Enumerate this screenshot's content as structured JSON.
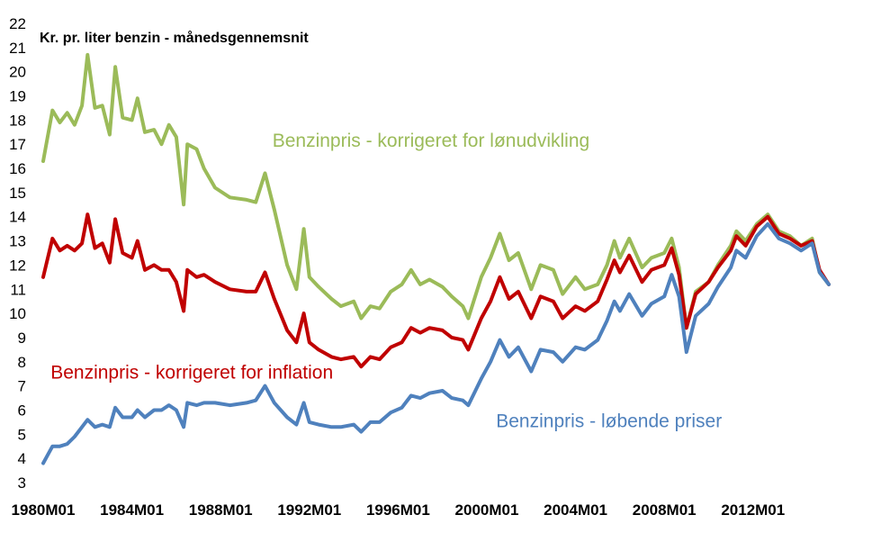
{
  "chart_data": {
    "type": "line",
    "title": "Kr. pr. liter benzin - månedsgennemsnit",
    "xlabel": "",
    "ylabel": "",
    "ylim": [
      3,
      22
    ],
    "yticks": [
      3,
      4,
      5,
      6,
      7,
      8,
      9,
      10,
      11,
      12,
      13,
      14,
      15,
      16,
      17,
      18,
      19,
      20,
      21,
      22
    ],
    "xlim": [
      "1980M01",
      "2015M06"
    ],
    "xticks": [
      "1980M01",
      "1984M01",
      "1988M01",
      "1992M01",
      "1996M01",
      "2000M01",
      "2004M01",
      "2008M01",
      "2012M01"
    ],
    "grid": false,
    "legend": "inline",
    "series": [
      {
        "name": "Benzinpris - korrigeret for lønudvikling",
        "color": "#9bbb59",
        "points": [
          [
            "1980M01",
            16.3
          ],
          [
            "1980M06",
            18.4
          ],
          [
            "1980M10",
            17.9
          ],
          [
            "1981M02",
            18.3
          ],
          [
            "1981M06",
            17.8
          ],
          [
            "1981M10",
            18.6
          ],
          [
            "1982M01",
            20.7
          ],
          [
            "1982M05",
            18.5
          ],
          [
            "1982M09",
            18.6
          ],
          [
            "1983M01",
            17.4
          ],
          [
            "1983M04",
            20.2
          ],
          [
            "1983M08",
            18.1
          ],
          [
            "1984M01",
            18.0
          ],
          [
            "1984M04",
            18.9
          ],
          [
            "1984M08",
            17.5
          ],
          [
            "1985M01",
            17.6
          ],
          [
            "1985M05",
            17.0
          ],
          [
            "1985M09",
            17.8
          ],
          [
            "1986M01",
            17.3
          ],
          [
            "1986M05",
            14.5
          ],
          [
            "1986M07",
            17.0
          ],
          [
            "1986M12",
            16.8
          ],
          [
            "1987M04",
            16.0
          ],
          [
            "1987M10",
            15.2
          ],
          [
            "1988M06",
            14.8
          ],
          [
            "1989M03",
            14.7
          ],
          [
            "1989M08",
            14.6
          ],
          [
            "1990M01",
            15.8
          ],
          [
            "1990M06",
            14.3
          ],
          [
            "1991M01",
            12.0
          ],
          [
            "1991M06",
            11.0
          ],
          [
            "1991M10",
            13.5
          ],
          [
            "1992M01",
            11.5
          ],
          [
            "1992M06",
            11.1
          ],
          [
            "1993M01",
            10.6
          ],
          [
            "1993M06",
            10.3
          ],
          [
            "1994M01",
            10.5
          ],
          [
            "1994M05",
            9.8
          ],
          [
            "1994M10",
            10.3
          ],
          [
            "1995M03",
            10.2
          ],
          [
            "1995M09",
            10.9
          ],
          [
            "1996M03",
            11.2
          ],
          [
            "1996M08",
            11.8
          ],
          [
            "1997M01",
            11.2
          ],
          [
            "1997M06",
            11.4
          ],
          [
            "1998M01",
            11.1
          ],
          [
            "1998M06",
            10.7
          ],
          [
            "1998M12",
            10.3
          ],
          [
            "1999M03",
            9.8
          ],
          [
            "1999M10",
            11.5
          ],
          [
            "2000M03",
            12.3
          ],
          [
            "2000M08",
            13.3
          ],
          [
            "2001M01",
            12.2
          ],
          [
            "2001M06",
            12.5
          ],
          [
            "2002M01",
            11.0
          ],
          [
            "2002M06",
            12.0
          ],
          [
            "2003M01",
            11.8
          ],
          [
            "2003M06",
            10.8
          ],
          [
            "2004M01",
            11.5
          ],
          [
            "2004M06",
            11.0
          ],
          [
            "2005M01",
            11.2
          ],
          [
            "2005M06",
            12.0
          ],
          [
            "2005M10",
            13.0
          ],
          [
            "2006M01",
            12.3
          ],
          [
            "2006M06",
            13.1
          ],
          [
            "2007M01",
            11.9
          ],
          [
            "2007M06",
            12.3
          ],
          [
            "2008M01",
            12.5
          ],
          [
            "2008M05",
            13.1
          ],
          [
            "2008M09",
            11.9
          ],
          [
            "2009M01",
            9.4
          ],
          [
            "2009M06",
            10.9
          ],
          [
            "2010M01",
            11.3
          ],
          [
            "2010M06",
            12.0
          ],
          [
            "2011M01",
            12.8
          ],
          [
            "2011M04",
            13.4
          ],
          [
            "2011M09",
            13.0
          ],
          [
            "2012M03",
            13.7
          ],
          [
            "2012M09",
            14.1
          ],
          [
            "2013M03",
            13.4
          ],
          [
            "2013M09",
            13.2
          ],
          [
            "2014M03",
            12.8
          ],
          [
            "2014M09",
            13.1
          ],
          [
            "2015M01",
            11.7
          ],
          [
            "2015M06",
            11.2
          ]
        ]
      },
      {
        "name": "Benzinpris - korrigeret for inflation",
        "color": "#c00000",
        "points": [
          [
            "1980M01",
            11.5
          ],
          [
            "1980M06",
            13.1
          ],
          [
            "1980M10",
            12.6
          ],
          [
            "1981M02",
            12.8
          ],
          [
            "1981M06",
            12.6
          ],
          [
            "1981M10",
            12.9
          ],
          [
            "1982M01",
            14.1
          ],
          [
            "1982M05",
            12.7
          ],
          [
            "1982M09",
            12.9
          ],
          [
            "1983M01",
            12.1
          ],
          [
            "1983M04",
            13.9
          ],
          [
            "1983M08",
            12.5
          ],
          [
            "1984M01",
            12.3
          ],
          [
            "1984M04",
            13.0
          ],
          [
            "1984M08",
            11.8
          ],
          [
            "1985M01",
            12.0
          ],
          [
            "1985M05",
            11.8
          ],
          [
            "1985M09",
            11.8
          ],
          [
            "1986M01",
            11.3
          ],
          [
            "1986M05",
            10.1
          ],
          [
            "1986M07",
            11.8
          ],
          [
            "1986M12",
            11.5
          ],
          [
            "1987M04",
            11.6
          ],
          [
            "1987M10",
            11.3
          ],
          [
            "1988M06",
            11.0
          ],
          [
            "1989M03",
            10.9
          ],
          [
            "1989M08",
            10.9
          ],
          [
            "1990M01",
            11.7
          ],
          [
            "1990M06",
            10.6
          ],
          [
            "1991M01",
            9.3
          ],
          [
            "1991M06",
            8.8
          ],
          [
            "1991M10",
            10.0
          ],
          [
            "1992M01",
            8.8
          ],
          [
            "1992M06",
            8.5
          ],
          [
            "1993M01",
            8.2
          ],
          [
            "1993M06",
            8.1
          ],
          [
            "1994M01",
            8.2
          ],
          [
            "1994M05",
            7.8
          ],
          [
            "1994M10",
            8.2
          ],
          [
            "1995M03",
            8.1
          ],
          [
            "1995M09",
            8.6
          ],
          [
            "1996M03",
            8.8
          ],
          [
            "1996M08",
            9.4
          ],
          [
            "1997M01",
            9.2
          ],
          [
            "1997M06",
            9.4
          ],
          [
            "1998M01",
            9.3
          ],
          [
            "1998M06",
            9.0
          ],
          [
            "1998M12",
            8.9
          ],
          [
            "1999M03",
            8.5
          ],
          [
            "1999M10",
            9.8
          ],
          [
            "2000M03",
            10.5
          ],
          [
            "2000M08",
            11.5
          ],
          [
            "2001M01",
            10.6
          ],
          [
            "2001M06",
            10.9
          ],
          [
            "2002M01",
            9.8
          ],
          [
            "2002M06",
            10.7
          ],
          [
            "2003M01",
            10.5
          ],
          [
            "2003M06",
            9.8
          ],
          [
            "2004M01",
            10.3
          ],
          [
            "2004M06",
            10.1
          ],
          [
            "2005M01",
            10.5
          ],
          [
            "2005M06",
            11.4
          ],
          [
            "2005M10",
            12.2
          ],
          [
            "2006M01",
            11.7
          ],
          [
            "2006M06",
            12.4
          ],
          [
            "2007M01",
            11.3
          ],
          [
            "2007M06",
            11.8
          ],
          [
            "2008M01",
            12.0
          ],
          [
            "2008M05",
            12.7
          ],
          [
            "2008M09",
            11.6
          ],
          [
            "2009M01",
            9.4
          ],
          [
            "2009M06",
            10.8
          ],
          [
            "2010M01",
            11.3
          ],
          [
            "2010M06",
            11.9
          ],
          [
            "2011M01",
            12.6
          ],
          [
            "2011M04",
            13.2
          ],
          [
            "2011M09",
            12.8
          ],
          [
            "2012M03",
            13.6
          ],
          [
            "2012M09",
            14.0
          ],
          [
            "2013M03",
            13.3
          ],
          [
            "2013M09",
            13.1
          ],
          [
            "2014M03",
            12.8
          ],
          [
            "2014M09",
            13.0
          ],
          [
            "2015M01",
            11.8
          ],
          [
            "2015M06",
            11.2
          ]
        ]
      },
      {
        "name": "Benzinpris - løbende priser",
        "color": "#4f81bd",
        "points": [
          [
            "1980M01",
            3.8
          ],
          [
            "1980M06",
            4.5
          ],
          [
            "1980M10",
            4.5
          ],
          [
            "1981M02",
            4.6
          ],
          [
            "1981M06",
            4.9
          ],
          [
            "1981M10",
            5.3
          ],
          [
            "1982M01",
            5.6
          ],
          [
            "1982M05",
            5.3
          ],
          [
            "1982M09",
            5.4
          ],
          [
            "1983M01",
            5.3
          ],
          [
            "1983M04",
            6.1
          ],
          [
            "1983M08",
            5.7
          ],
          [
            "1984M01",
            5.7
          ],
          [
            "1984M04",
            6.0
          ],
          [
            "1984M08",
            5.7
          ],
          [
            "1985M01",
            6.0
          ],
          [
            "1985M05",
            6.0
          ],
          [
            "1985M09",
            6.2
          ],
          [
            "1986M01",
            6.0
          ],
          [
            "1986M05",
            5.3
          ],
          [
            "1986M07",
            6.3
          ],
          [
            "1986M12",
            6.2
          ],
          [
            "1987M04",
            6.3
          ],
          [
            "1987M10",
            6.3
          ],
          [
            "1988M06",
            6.2
          ],
          [
            "1989M03",
            6.3
          ],
          [
            "1989M08",
            6.4
          ],
          [
            "1990M01",
            7.0
          ],
          [
            "1990M06",
            6.3
          ],
          [
            "1991M01",
            5.7
          ],
          [
            "1991M06",
            5.4
          ],
          [
            "1991M10",
            6.3
          ],
          [
            "1992M01",
            5.5
          ],
          [
            "1992M06",
            5.4
          ],
          [
            "1993M01",
            5.3
          ],
          [
            "1993M06",
            5.3
          ],
          [
            "1994M01",
            5.4
          ],
          [
            "1994M05",
            5.1
          ],
          [
            "1994M10",
            5.5
          ],
          [
            "1995M03",
            5.5
          ],
          [
            "1995M09",
            5.9
          ],
          [
            "1996M03",
            6.1
          ],
          [
            "1996M08",
            6.6
          ],
          [
            "1997M01",
            6.5
          ],
          [
            "1997M06",
            6.7
          ],
          [
            "1998M01",
            6.8
          ],
          [
            "1998M06",
            6.5
          ],
          [
            "1998M12",
            6.4
          ],
          [
            "1999M03",
            6.2
          ],
          [
            "1999M10",
            7.3
          ],
          [
            "2000M03",
            8.0
          ],
          [
            "2000M08",
            8.9
          ],
          [
            "2001M01",
            8.2
          ],
          [
            "2001M06",
            8.6
          ],
          [
            "2002M01",
            7.6
          ],
          [
            "2002M06",
            8.5
          ],
          [
            "2003M01",
            8.4
          ],
          [
            "2003M06",
            8.0
          ],
          [
            "2004M01",
            8.6
          ],
          [
            "2004M06",
            8.5
          ],
          [
            "2005M01",
            8.9
          ],
          [
            "2005M06",
            9.7
          ],
          [
            "2005M10",
            10.5
          ],
          [
            "2006M01",
            10.1
          ],
          [
            "2006M06",
            10.8
          ],
          [
            "2007M01",
            9.9
          ],
          [
            "2007M06",
            10.4
          ],
          [
            "2008M01",
            10.7
          ],
          [
            "2008M05",
            11.6
          ],
          [
            "2008M09",
            10.7
          ],
          [
            "2009M01",
            8.4
          ],
          [
            "2009M06",
            9.9
          ],
          [
            "2010M01",
            10.4
          ],
          [
            "2010M06",
            11.1
          ],
          [
            "2011M01",
            11.9
          ],
          [
            "2011M04",
            12.6
          ],
          [
            "2011M09",
            12.3
          ],
          [
            "2012M03",
            13.2
          ],
          [
            "2012M09",
            13.7
          ],
          [
            "2013M03",
            13.1
          ],
          [
            "2013M09",
            12.9
          ],
          [
            "2014M03",
            12.6
          ],
          [
            "2014M09",
            12.9
          ],
          [
            "2015M01",
            11.7
          ],
          [
            "2015M06",
            11.2
          ]
        ]
      }
    ],
    "labels": [
      {
        "series": 0,
        "text": "Benzinpris - korrigeret for lønudvikling",
        "at": [
          "1990M05",
          16.9
        ]
      },
      {
        "series": 1,
        "text": "Benzinpris - korrigeret for inflation",
        "at": [
          "1980M05",
          7.3
        ]
      },
      {
        "series": 2,
        "text": "Benzinpris - løbende priser",
        "at": [
          "2000M06",
          5.3
        ]
      }
    ]
  }
}
